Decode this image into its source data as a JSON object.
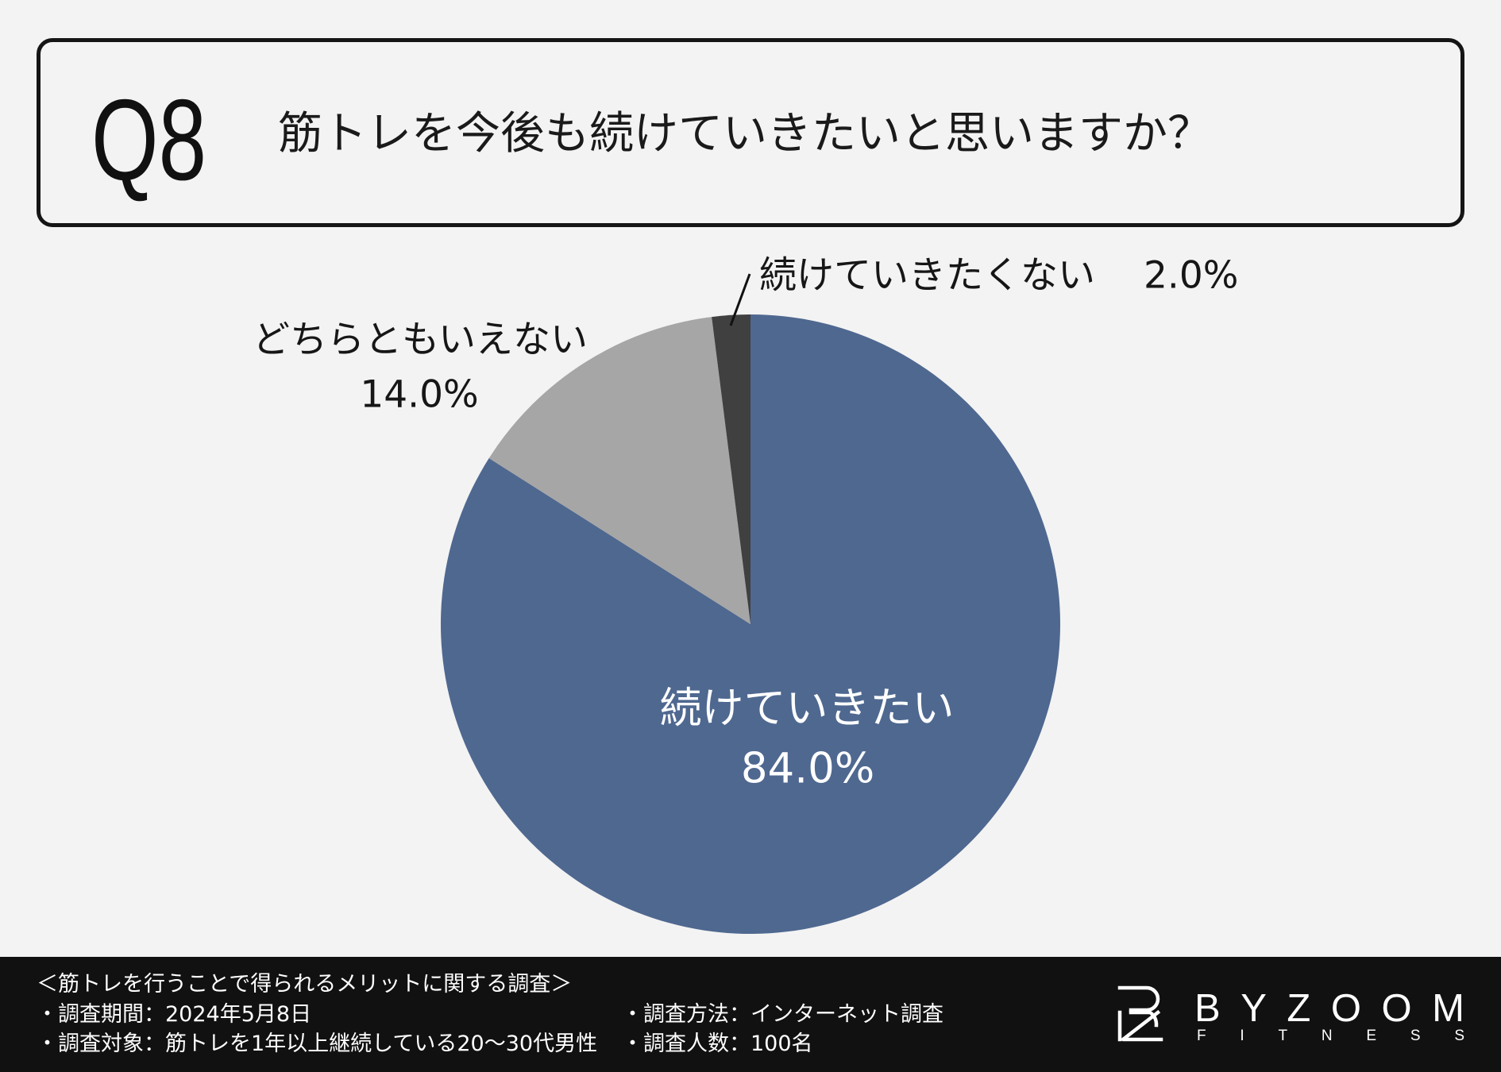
{
  "header": {
    "question_number": "Q8"
  },
  "chart_data": {
    "type": "pie",
    "title": "筋トレを今後も続けていきたいと思いますか？",
    "categories": [
      "続けていきたい",
      "どちらともいえない",
      "続けていきたくない"
    ],
    "values": [
      84.0,
      14.0,
      2.0
    ],
    "value_labels": [
      "84.0%",
      "14.0%",
      "2.0%"
    ],
    "unit": "%",
    "colors": [
      "#4f6890",
      "#a6a6a6",
      "#404040"
    ],
    "legend": "none"
  },
  "footer": {
    "survey_title": "＜筋トレを行うことで得られるメリットに関する調査＞",
    "period": "・調査期間：2024年5月8日",
    "target": "・調査対象：筋トレを1年以上継続している20〜30代男性",
    "method": "・調査方法：インターネット調査",
    "respondents": "・調査人数：100名"
  },
  "logo": {
    "wordmark": "BYZOOM",
    "tagline": "FITNESS"
  },
  "theme": {
    "background": "#f3f3f3",
    "footer_background": "#111111"
  }
}
